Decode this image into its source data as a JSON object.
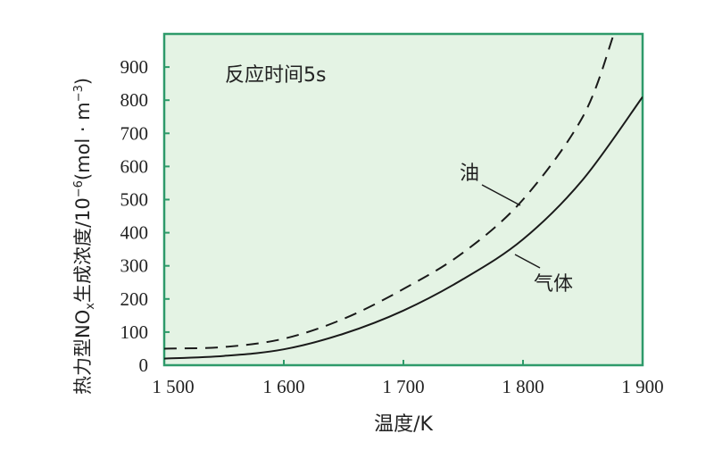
{
  "chart_data": {
    "type": "line",
    "title": "",
    "annotation": "反应时间5s",
    "xlabel": "温度/K",
    "ylabel_parts": {
      "main": "热力型NO",
      "sub": "x",
      "mid": "生成浓度/10",
      "sup1": "−6",
      "unit": "(mol · m",
      "sup2": "−3",
      "end": ")"
    },
    "xlim": [
      1500,
      1900
    ],
    "ylim": [
      0,
      1000
    ],
    "x_ticks": [
      1500,
      1600,
      1700,
      1800,
      1900
    ],
    "x_tick_labels": [
      "1 500",
      "1 600",
      "1 700",
      "1 800",
      "1 900"
    ],
    "y_ticks": [
      0,
      100,
      200,
      300,
      400,
      500,
      600,
      700,
      800,
      900
    ],
    "y_tick_labels": [
      "0",
      "100",
      "200",
      "300",
      "400",
      "500",
      "600",
      "700",
      "800",
      "900"
    ],
    "grid": false,
    "colors": {
      "background": "#e4f3e4",
      "frame": "#2e9a6a",
      "line": "#1a1a1a"
    },
    "series": [
      {
        "name": "油",
        "style": "dashed",
        "x": [
          1500,
          1550,
          1600,
          1650,
          1700,
          1750,
          1800,
          1850,
          1876
        ],
        "y": [
          50,
          55,
          80,
          140,
          230,
          340,
          500,
          750,
          1000
        ]
      },
      {
        "name": "气体",
        "style": "solid",
        "x": [
          1500,
          1550,
          1600,
          1650,
          1700,
          1750,
          1800,
          1850,
          1900
        ],
        "y": [
          20,
          28,
          48,
          95,
          165,
          260,
          380,
          560,
          810
        ]
      }
    ]
  }
}
